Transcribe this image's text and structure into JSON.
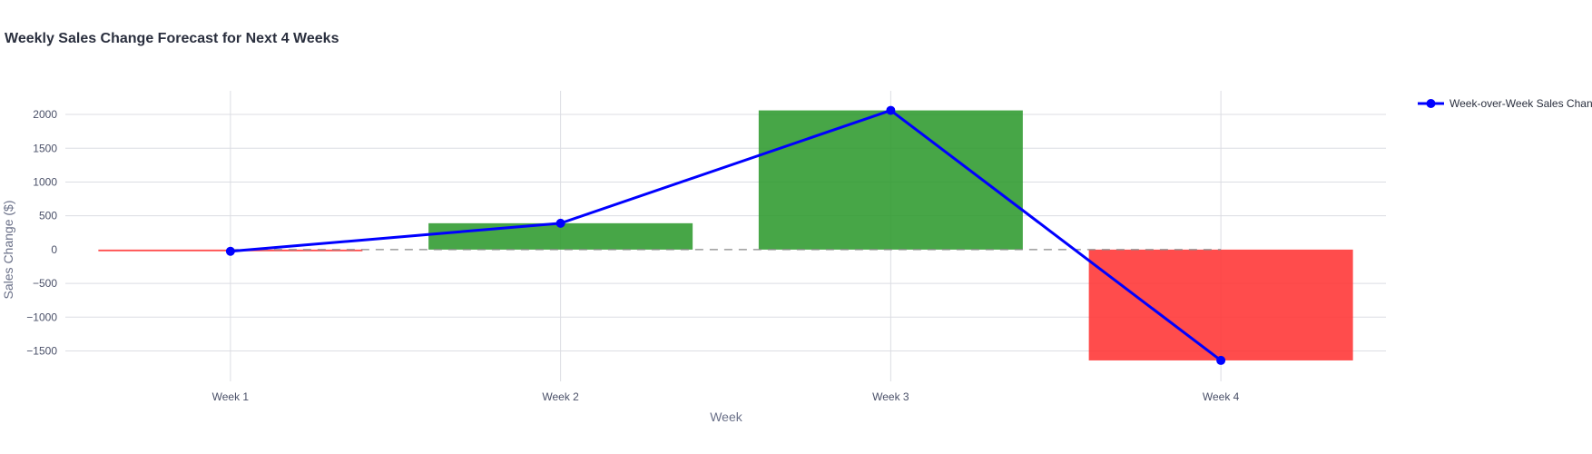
{
  "chart_data": {
    "type": "bar",
    "title": "Weekly Sales Change Forecast for Next 4 Weeks",
    "xlabel": "Week",
    "ylabel": "Sales Change ($)",
    "categories": [
      "Week 1",
      "Week 2",
      "Week 3",
      "Week 4"
    ],
    "ylim": [
      -1950,
      2350
    ],
    "yticks": [
      -1500,
      -1000,
      -500,
      0,
      500,
      1000,
      1500,
      2000
    ],
    "ytick_labels": [
      "−1500",
      "−1000",
      "−500",
      "0",
      "500",
      "1000",
      "1500",
      "2000"
    ],
    "grid": true,
    "zero_line": "dashed",
    "series": [
      {
        "name": "",
        "kind": "bar",
        "values": [
          -25,
          390,
          2060,
          -1640
        ],
        "positive_color": "#2e9a2e",
        "negative_color": "#ff3333"
      },
      {
        "name": "Week-over-Week Sales Chan",
        "kind": "line+markers",
        "values": [
          -25,
          390,
          2060,
          -1640
        ],
        "color": "#0000ff"
      }
    ],
    "legend": "top-right"
  }
}
